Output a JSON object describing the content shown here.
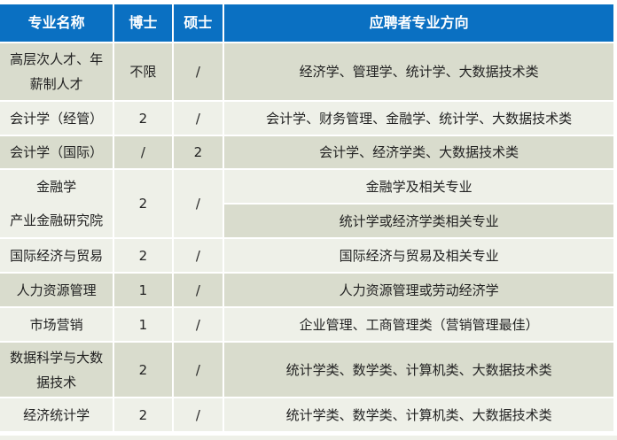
{
  "header": {
    "major": "专业名称",
    "phd": "博士",
    "master": "硕士",
    "direction": "应聘者专业方向"
  },
  "rows": [
    {
      "major": "高层次人才、年薪制人才",
      "phd": "不限",
      "master": "/",
      "direction": "经济学、管理学、统计学、大数据技术类"
    },
    {
      "major": "会计学（经管）",
      "phd": "2",
      "master": "/",
      "direction": "会计学、财务管理、金融学、统计学、大数据技术类"
    },
    {
      "major": "会计学（国际）",
      "phd": "/",
      "master": "2",
      "direction": "会计学、经济学类、大数据技术类"
    },
    {
      "major": "金融学",
      "major2": "产业金融研究院",
      "phd": "2",
      "master": "/",
      "direction": "金融学及相关专业",
      "direction2": "统计学或经济学类相关专业"
    },
    {
      "major": "国际经济与贸易",
      "phd": "2",
      "master": "/",
      "direction": "国际经济与贸易及相关专业"
    },
    {
      "major": "人力资源管理",
      "phd": "1",
      "master": "/",
      "direction": "人力资源管理或劳动经济学"
    },
    {
      "major": "市场营销",
      "phd": "1",
      "master": "/",
      "direction": "企业管理、工商管理类（营销管理最佳）"
    },
    {
      "major": "数据科学与大数据技术",
      "phd": "2",
      "master": "/",
      "direction": "统计学类、数学类、计算机类、大数据技术类"
    },
    {
      "major": "经济统计学",
      "phd": "2",
      "master": "/",
      "direction": "统计学类、数学类、计算机类、大数据技术类"
    }
  ],
  "colors": {
    "header": "#0a70c2",
    "row_dark": "#d9dccd",
    "row_light": "#eef0e8"
  }
}
